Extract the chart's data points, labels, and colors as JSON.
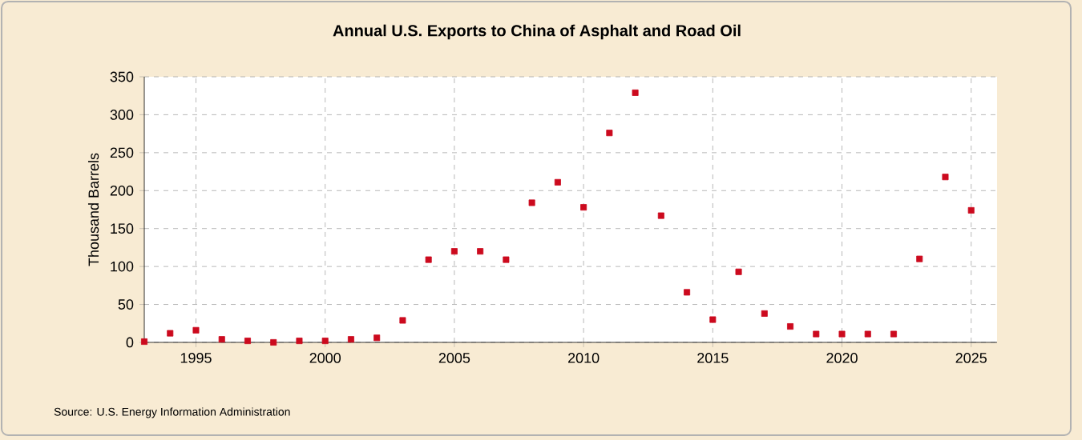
{
  "chart_data": {
    "type": "scatter",
    "title": "Annual U.S. Exports to China of Asphalt and Road Oil",
    "ylabel": "Thousand Barrels",
    "x": [
      1993,
      1994,
      1995,
      1996,
      1997,
      1998,
      1999,
      2000,
      2001,
      2002,
      2003,
      2004,
      2005,
      2006,
      2007,
      2008,
      2009,
      2010,
      2011,
      2012,
      2013,
      2014,
      2015,
      2016,
      2017,
      2018,
      2019,
      2020,
      2021,
      2022,
      2023,
      2024,
      2025
    ],
    "values": [
      1,
      12,
      16,
      4,
      2,
      0,
      2,
      2,
      4,
      6,
      29,
      109,
      120,
      120,
      109,
      184,
      211,
      178,
      276,
      329,
      167,
      66,
      30,
      93,
      38,
      21,
      11,
      11,
      11,
      11,
      110,
      218,
      174
    ],
    "color": "#cc0a1e",
    "marker": "square",
    "xlim": [
      1993,
      2026
    ],
    "ylim": [
      0,
      350
    ],
    "xticks": [
      1995,
      2000,
      2005,
      2010,
      2015,
      2020,
      2025
    ],
    "yticks": [
      0,
      50,
      100,
      150,
      200,
      250,
      300,
      350
    ],
    "grid": true,
    "annotations": [
      "Source: U.S. Energy Information Administration"
    ]
  }
}
